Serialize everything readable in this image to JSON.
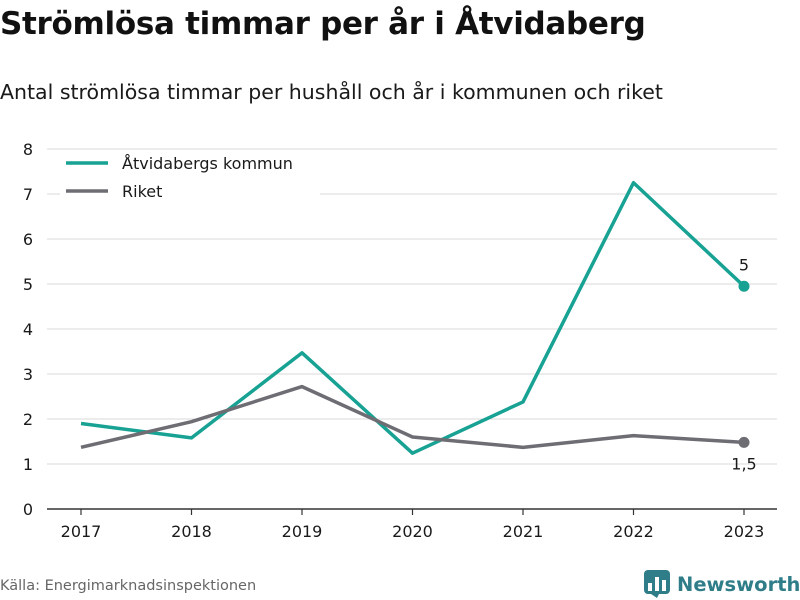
{
  "title": "Strömlösa timmar per år i Åtvidaberg",
  "subtitle": "Antal strömlösa timmar per hushåll och år i kommunen och riket",
  "source": "Källa: Energimarknadsinspektionen",
  "brand": {
    "name": "Newsworthy",
    "icon": "bar-chart-logo-icon"
  },
  "chart_data": {
    "type": "line",
    "x": [
      "2017",
      "2018",
      "2019",
      "2020",
      "2021",
      "2022",
      "2023"
    ],
    "ylim": [
      0,
      8
    ],
    "yticks": [
      "0",
      "1",
      "2",
      "3",
      "4",
      "5",
      "6",
      "7",
      "8"
    ],
    "grid": true,
    "legend_position": "top-left",
    "series": [
      {
        "name": "Åtvidabergs kommun",
        "color": "#17a294",
        "values": [
          1.9,
          1.58,
          3.47,
          1.24,
          2.38,
          7.25,
          4.95
        ],
        "end_label": "5"
      },
      {
        "name": "Riket",
        "color": "#6e6d74",
        "values": [
          1.37,
          1.94,
          2.72,
          1.6,
          1.37,
          1.63,
          1.48
        ],
        "end_label": "1,5"
      }
    ]
  }
}
